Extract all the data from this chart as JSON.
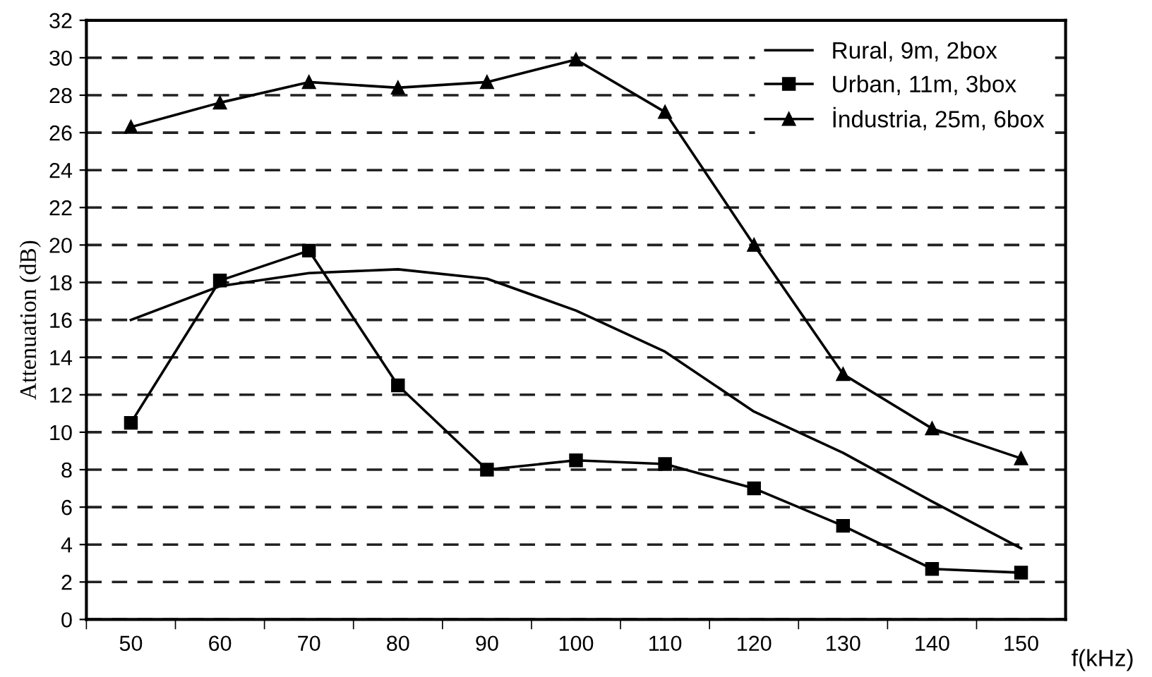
{
  "chart_data": {
    "type": "line",
    "ylabel": "Attenuation (dB)",
    "xlabel": "f(kHz)",
    "categories": [
      "50",
      "60",
      "70",
      "80",
      "90",
      "100",
      "110",
      "120",
      "130",
      "140",
      "150"
    ],
    "ylim": [
      0,
      32
    ],
    "yticks": [
      0,
      2,
      4,
      6,
      8,
      10,
      12,
      14,
      16,
      18,
      20,
      22,
      24,
      26,
      28,
      30,
      32
    ],
    "grid": "y",
    "legend": "top right",
    "line_style": "solid",
    "series": [
      {
        "name": "Rural, 9m, 2box",
        "color": "#000000",
        "marker": "none",
        "values": [
          16,
          17.8,
          18.5,
          18.7,
          18.2,
          16.5,
          14.3,
          11.1,
          8.9,
          6.3,
          3.8
        ]
      },
      {
        "name": "Urban, 11m, 3box",
        "color": "#000000",
        "marker": "square",
        "values": [
          10.5,
          18.1,
          19.7,
          12.5,
          8.0,
          8.5,
          8.3,
          7.0,
          5.0,
          2.7,
          2.5
        ]
      },
      {
        "name": "İndustria, 25m, 6box",
        "color": "#000000",
        "marker": "triangle",
        "values": [
          26.3,
          27.6,
          28.7,
          28.4,
          28.7,
          29.9,
          27.1,
          20.0,
          13.1,
          10.2,
          8.6
        ]
      }
    ]
  }
}
